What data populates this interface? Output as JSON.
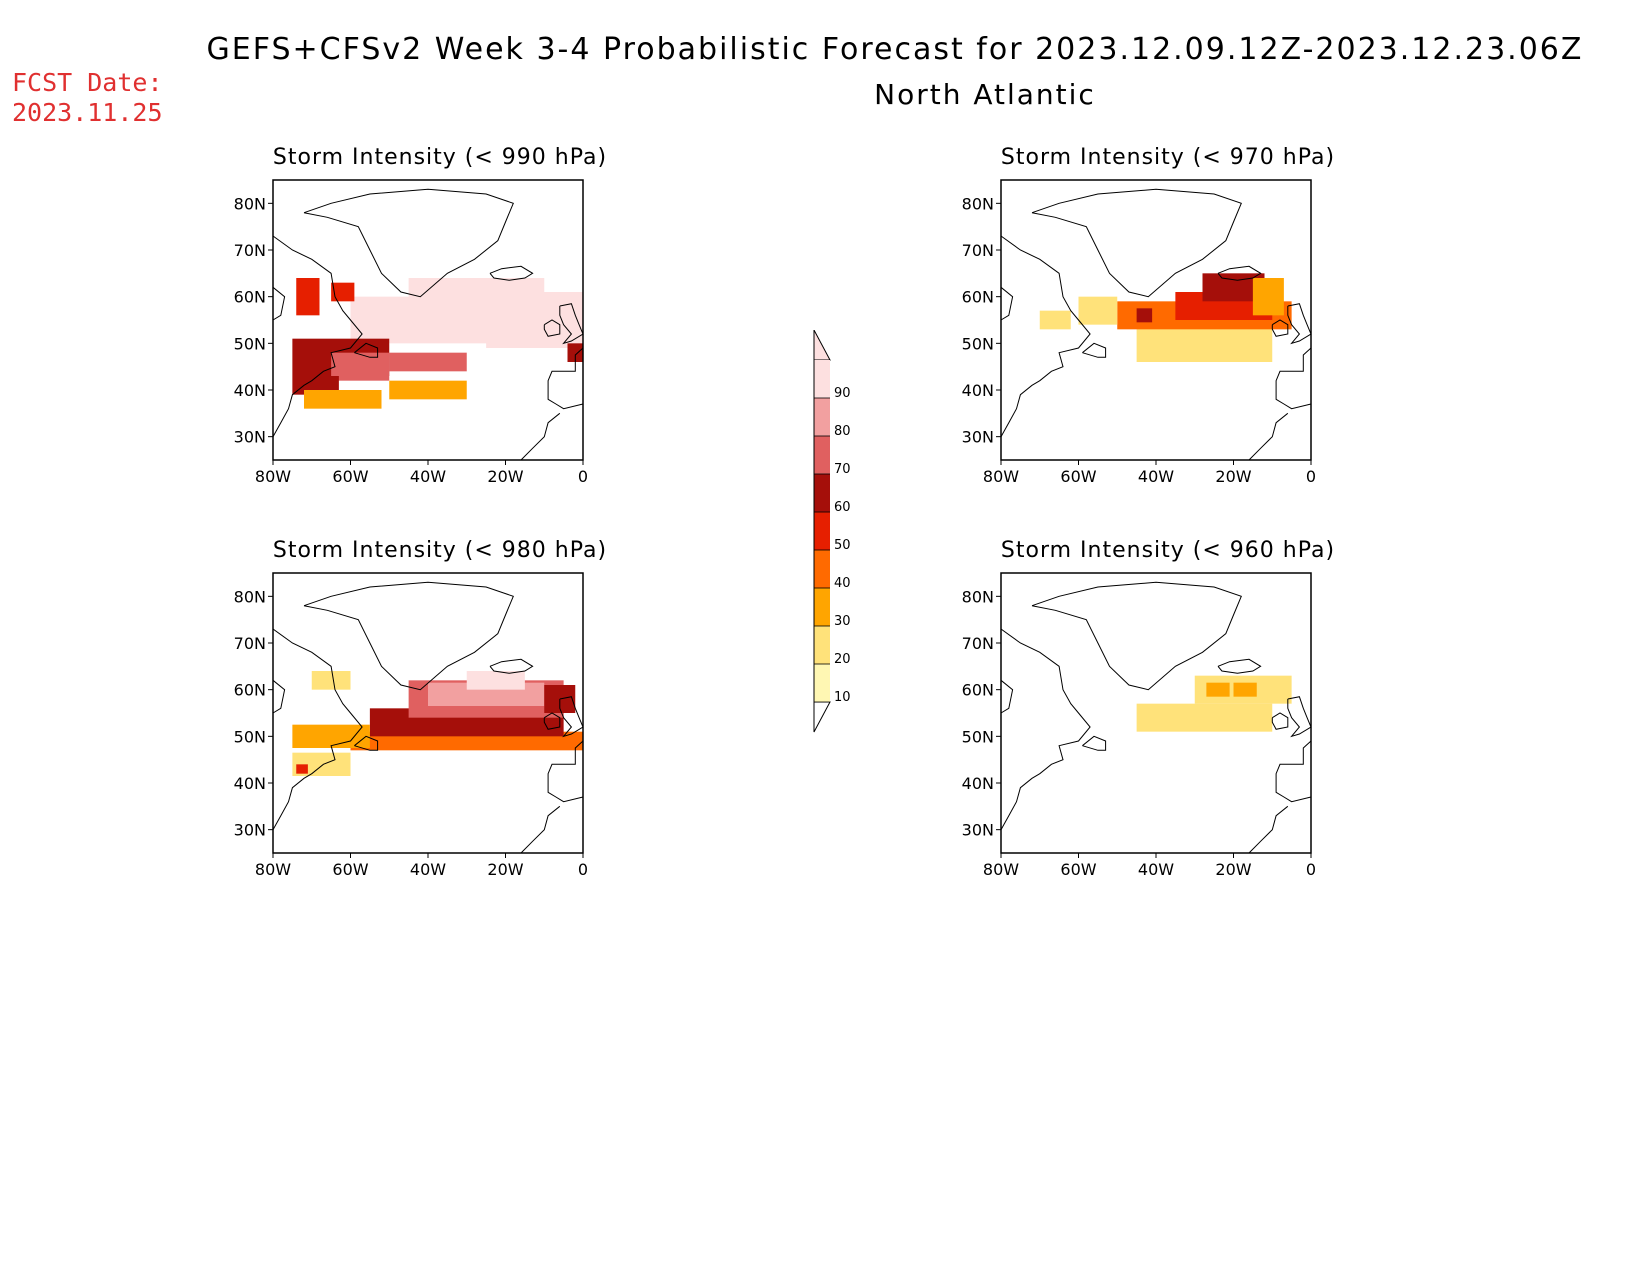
{
  "header": {
    "title": "GEFS+CFSv2 Week 3-4 Probabilistic Forecast for 2023.12.09.12Z-2023.12.23.06Z",
    "region": "North Atlantic",
    "fcst_label": "FCST Date:",
    "fcst_date": "2023.11.25"
  },
  "axes": {
    "lat_labels": [
      "80N",
      "70N",
      "60N",
      "50N",
      "40N",
      "30N"
    ],
    "lat_values": [
      80,
      70,
      60,
      50,
      40,
      30
    ],
    "lon_labels": [
      "80W",
      "60W",
      "40W",
      "20W",
      "0"
    ],
    "lon_values": [
      -80,
      -60,
      -40,
      -20,
      0
    ],
    "lat_range": [
      25,
      85
    ],
    "lon_range": [
      -80,
      0
    ]
  },
  "colorbar": {
    "levels": [
      "10",
      "20",
      "30",
      "40",
      "50",
      "60",
      "70",
      "80",
      "90"
    ],
    "colors": [
      "#fff7b3",
      "#ffe27a",
      "#ffa500",
      "#ff6a00",
      "#e61f00",
      "#a50f0a",
      "#e06060",
      "#f2a0a0",
      "#fde0e0"
    ]
  },
  "panels": [
    {
      "title": "Storm Intensity (< 990 hPa)",
      "cells": [
        {
          "lon": -60,
          "lat": 55,
          "lw": 60,
          "lh": 10,
          "v": 8
        },
        {
          "lon": -45,
          "lat": 60,
          "lw": 35,
          "lh": 8,
          "v": 9
        },
        {
          "lon": -25,
          "lat": 55,
          "lw": 25,
          "lh": 12,
          "v": 9
        },
        {
          "lon": -75,
          "lat": 47,
          "lw": 25,
          "lh": 8,
          "v": 5
        },
        {
          "lon": -65,
          "lat": 45,
          "lw": 15,
          "lh": 6,
          "v": 6
        },
        {
          "lon": -50,
          "lat": 46,
          "lw": 20,
          "lh": 4,
          "v": 6
        },
        {
          "lon": -75,
          "lat": 41,
          "lw": 12,
          "lh": 4,
          "v": 5
        },
        {
          "lon": -72,
          "lat": 38,
          "lw": 20,
          "lh": 4,
          "v": 2
        },
        {
          "lon": -50,
          "lat": 40,
          "lw": 20,
          "lh": 4,
          "v": 2
        },
        {
          "lon": -74,
          "lat": 60,
          "lw": 6,
          "lh": 8,
          "v": 4
        },
        {
          "lon": -65,
          "lat": 61,
          "lw": 6,
          "lh": 4,
          "v": 4
        },
        {
          "lon": -10,
          "lat": 55,
          "lw": 6,
          "lh": 10,
          "v": 8
        },
        {
          "lon": -4,
          "lat": 48,
          "lw": 4,
          "lh": 4,
          "v": 5
        }
      ]
    },
    {
      "title": "Storm Intensity (< 970 hPa)",
      "cells": [
        {
          "lon": -45,
          "lat": 50,
          "lw": 35,
          "lh": 8,
          "v": 1
        },
        {
          "lon": -50,
          "lat": 56,
          "lw": 45,
          "lh": 6,
          "v": 3
        },
        {
          "lon": -35,
          "lat": 58,
          "lw": 25,
          "lh": 6,
          "v": 4
        },
        {
          "lon": -28,
          "lat": 62,
          "lw": 16,
          "lh": 6,
          "v": 5
        },
        {
          "lon": -45,
          "lat": 56,
          "lw": 4,
          "lh": 3,
          "v": 5
        },
        {
          "lon": -60,
          "lat": 57,
          "lw": 10,
          "lh": 6,
          "v": 1
        },
        {
          "lon": -15,
          "lat": 60,
          "lw": 8,
          "lh": 8,
          "v": 2
        },
        {
          "lon": -70,
          "lat": 55,
          "lw": 8,
          "lh": 4,
          "v": 1
        }
      ]
    },
    {
      "title": "Storm Intensity (< 980 hPa)",
      "cells": [
        {
          "lon": -60,
          "lat": 49,
          "lw": 65,
          "lh": 4,
          "v": 3
        },
        {
          "lon": -55,
          "lat": 53,
          "lw": 50,
          "lh": 6,
          "v": 5
        },
        {
          "lon": -45,
          "lat": 58,
          "lw": 40,
          "lh": 8,
          "v": 6
        },
        {
          "lon": -40,
          "lat": 59,
          "lw": 30,
          "lh": 5,
          "v": 7
        },
        {
          "lon": -30,
          "lat": 62,
          "lw": 15,
          "lh": 4,
          "v": 8
        },
        {
          "lon": -75,
          "lat": 50,
          "lw": 20,
          "lh": 5,
          "v": 2
        },
        {
          "lon": -75,
          "lat": 44,
          "lw": 15,
          "lh": 5,
          "v": 1
        },
        {
          "lon": -70,
          "lat": 62,
          "lw": 10,
          "lh": 4,
          "v": 1
        },
        {
          "lon": -10,
          "lat": 58,
          "lw": 8,
          "lh": 6,
          "v": 5
        },
        {
          "lon": -74,
          "lat": 43,
          "lw": 3,
          "lh": 2,
          "v": 4
        }
      ]
    },
    {
      "title": "Storm Intensity (< 960 hPa)",
      "cells": [
        {
          "lon": -45,
          "lat": 54,
          "lw": 35,
          "lh": 6,
          "v": 1
        },
        {
          "lon": -30,
          "lat": 60,
          "lw": 25,
          "lh": 6,
          "v": 1
        },
        {
          "lon": -27,
          "lat": 60,
          "lw": 6,
          "lh": 3,
          "v": 2
        },
        {
          "lon": -20,
          "lat": 60,
          "lw": 6,
          "lh": 3,
          "v": 2
        }
      ]
    }
  ]
}
